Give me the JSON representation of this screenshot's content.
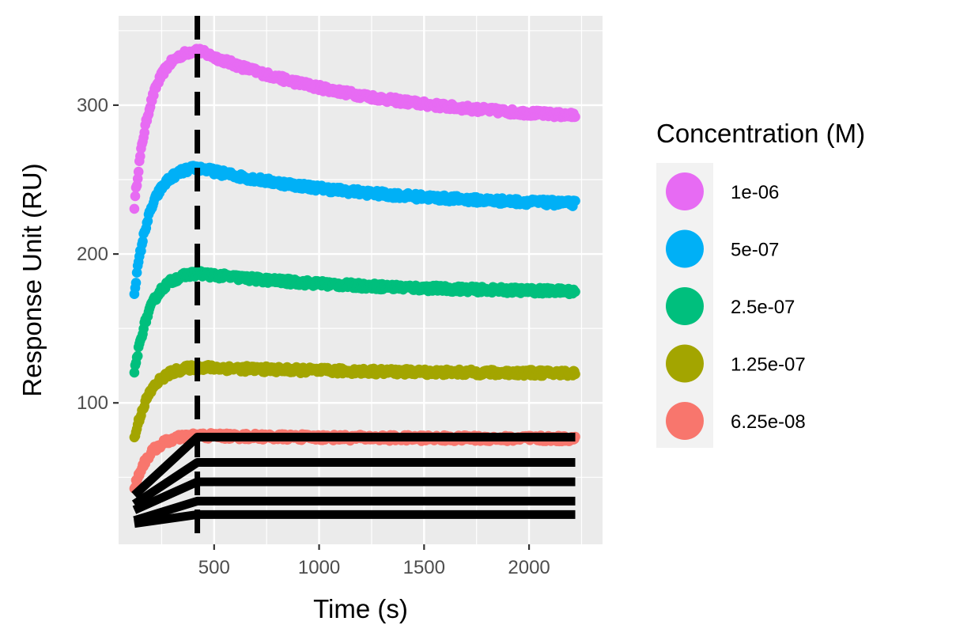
{
  "chart_data": {
    "type": "scatter",
    "xlabel": "Time (s)",
    "ylabel": "Response Unit (RU)",
    "xlim": [
      45,
      2350
    ],
    "ylim": [
      5,
      360
    ],
    "x_ticks": [
      500,
      1000,
      1500,
      2000
    ],
    "x_tick_labels": [
      "500",
      "1000",
      "1500",
      "2000"
    ],
    "y_ticks": [
      100,
      200,
      300
    ],
    "y_tick_labels": [
      "100",
      "200",
      "300"
    ],
    "injection_end": 420,
    "grid": true,
    "legend": {
      "title": "Concentration (M)",
      "position": "right",
      "entries": [
        "1e-06",
        "5e-07",
        "2.5e-07",
        "1.25e-07",
        "6.25e-08"
      ]
    },
    "colors": {
      "1e-06": "#E76BF3",
      "5e-07": "#00B0F6",
      "2.5e-07": "#00BF7D",
      "1.25e-07": "#A3A500",
      "6.25e-08": "#F8766D",
      "fit_line": "#000000",
      "panel": "#EBEBEB",
      "gridline": "#FFFFFF"
    },
    "series": [
      {
        "name": "1e-06",
        "start": 232,
        "peak": 337,
        "end": 293,
        "t_start": 120,
        "t_peak": 420,
        "t_end": 2220
      },
      {
        "name": "5e-07",
        "start": 174,
        "peak": 258,
        "end": 234,
        "t_start": 120,
        "t_peak": 420,
        "t_end": 2220
      },
      {
        "name": "2.5e-07",
        "start": 120,
        "peak": 187,
        "end": 175,
        "t_start": 120,
        "t_peak": 420,
        "t_end": 2220
      },
      {
        "name": "1.25e-07",
        "start": 76,
        "peak": 124,
        "end": 120,
        "t_start": 120,
        "t_peak": 420,
        "t_end": 2220
      },
      {
        "name": "6.25e-08",
        "start": 43,
        "peak": 78,
        "end": 76,
        "t_start": 120,
        "t_peak": 420,
        "t_end": 2220
      }
    ],
    "fit_lines": [
      {
        "x": [
          120,
          420,
          2220
        ],
        "y": [
          38,
          77,
          77
        ]
      },
      {
        "x": [
          120,
          420,
          2220
        ],
        "y": [
          32,
          60,
          60
        ]
      },
      {
        "x": [
          120,
          420,
          2220
        ],
        "y": [
          28,
          47,
          47
        ]
      },
      {
        "x": [
          120,
          420,
          2220
        ],
        "y": [
          21,
          34,
          34
        ]
      },
      {
        "x": [
          120,
          420,
          2220
        ],
        "y": [
          19,
          25,
          25
        ]
      }
    ]
  }
}
